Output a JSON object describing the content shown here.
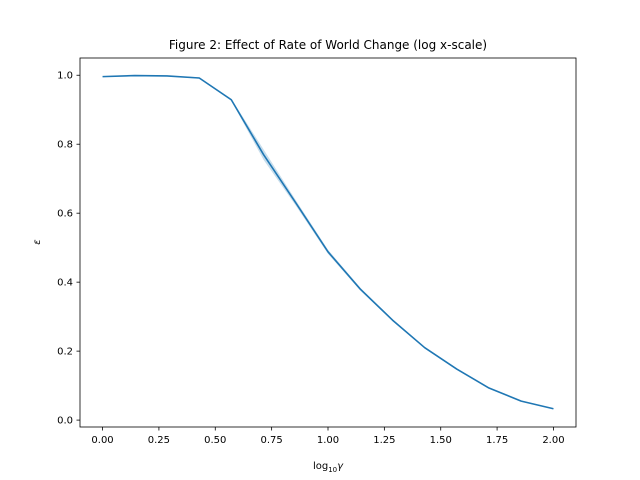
{
  "chart_data": {
    "type": "line",
    "title": "Figure 2: Effect of Rate of World Change (log x-scale)",
    "xlabel": {
      "base": "log",
      "sub": "10",
      "var": "γ"
    },
    "ylabel": "ε",
    "xlim": [
      -0.1,
      2.1
    ],
    "ylim": [
      -0.02,
      1.05
    ],
    "xticks": [
      0.0,
      0.25,
      0.5,
      0.75,
      1.0,
      1.25,
      1.5,
      1.75,
      2.0
    ],
    "xtick_labels": [
      "0.00",
      "0.25",
      "0.50",
      "0.75",
      "1.00",
      "1.25",
      "1.50",
      "1.75",
      "2.00"
    ],
    "yticks": [
      0.0,
      0.2,
      0.4,
      0.6,
      0.8,
      1.0
    ],
    "ytick_labels": [
      "0.0",
      "0.2",
      "0.4",
      "0.6",
      "0.8",
      "1.0"
    ],
    "grid": false,
    "color": "#1f77b4",
    "series": [
      {
        "x": [
          0.0,
          0.143,
          0.286,
          0.429,
          0.571,
          0.714,
          0.857,
          1.0,
          1.143,
          1.286,
          1.429,
          1.571,
          1.714,
          1.857,
          2.0
        ],
        "y": [
          0.996,
          0.999,
          0.998,
          0.992,
          0.929,
          0.77,
          0.63,
          0.488,
          0.38,
          0.29,
          0.21,
          0.148,
          0.093,
          0.055,
          0.033
        ],
        "band_lower": [
          0.995,
          0.998,
          0.997,
          0.99,
          0.926,
          0.755,
          0.622,
          0.482,
          0.376,
          0.287,
          0.208,
          0.146,
          0.092,
          0.054,
          0.032
        ],
        "band_upper": [
          0.997,
          1.0,
          0.999,
          0.994,
          0.932,
          0.785,
          0.638,
          0.494,
          0.384,
          0.293,
          0.212,
          0.15,
          0.094,
          0.056,
          0.034
        ]
      }
    ]
  }
}
